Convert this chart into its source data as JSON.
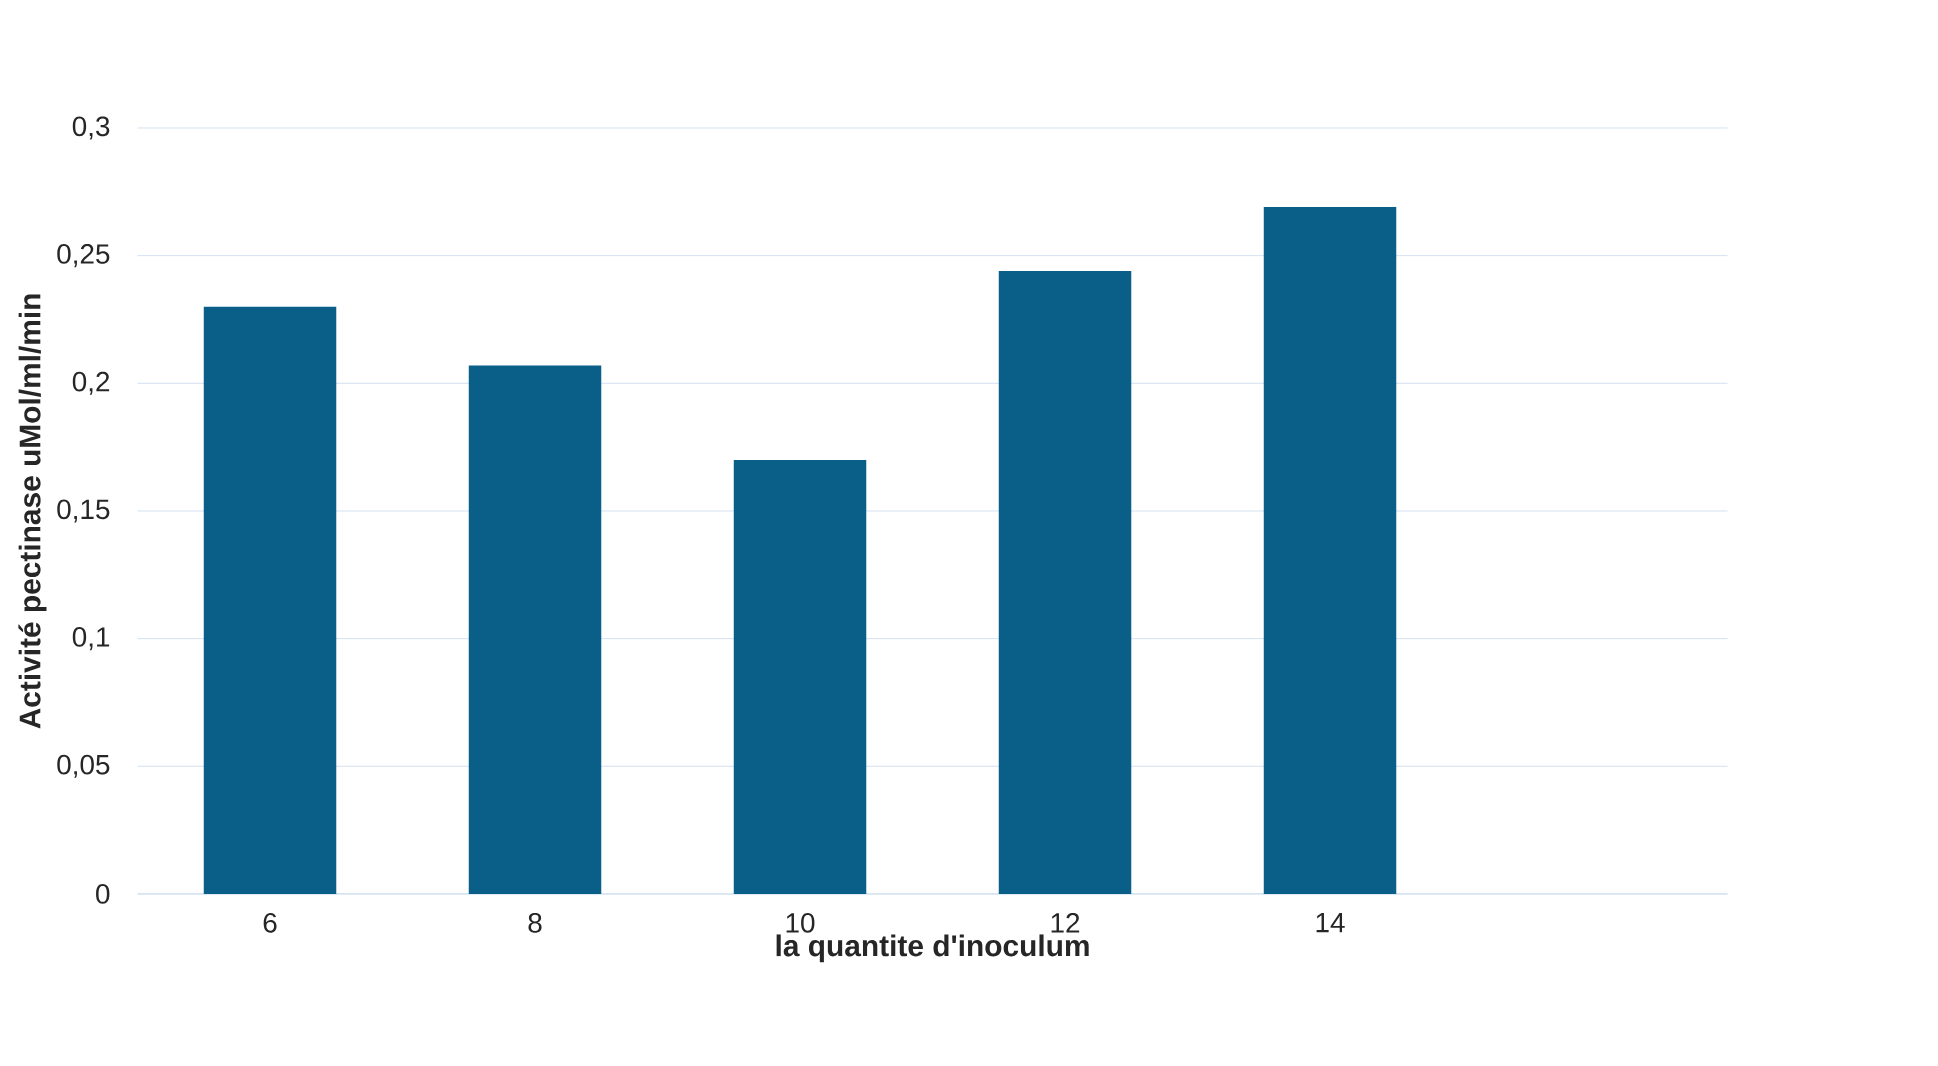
{
  "chart_data": {
    "type": "bar",
    "xlabel": "la quantite d'inoculum",
    "ylabel": "Activité pectinase uMol/ml/min",
    "categories": [
      "6",
      "8",
      "10",
      "12",
      "14",
      null
    ],
    "values": [
      0.23,
      0.207,
      0.17,
      0.244,
      0.269,
      null
    ],
    "color": "#0a5f88",
    "ylim": [
      0,
      0.3
    ],
    "yticks": [
      {
        "value": 0,
        "label": "0"
      },
      {
        "value": 0.05,
        "label": "0,05"
      },
      {
        "value": 0.1,
        "label": "0,1"
      },
      {
        "value": 0.15,
        "label": "0,15"
      },
      {
        "value": 0.2,
        "label": "0,2"
      },
      {
        "value": 0.25,
        "label": "0,25"
      },
      {
        "value": 0.3,
        "label": "0,3"
      }
    ],
    "grid": "y"
  }
}
